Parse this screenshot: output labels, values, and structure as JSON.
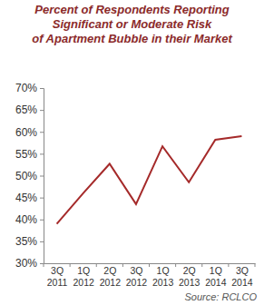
{
  "chart_data": {
    "type": "line",
    "title": "Percent of Respondents Reporting\nSignificant or Moderate Risk\nof Apartment Bubble in their Market",
    "source": "Source: RCLCO",
    "categories": [
      "3Q 2011",
      "1Q 2012",
      "2Q 2012",
      "3Q 2012",
      "1Q 2013",
      "2Q 2013",
      "1Q 2014",
      "3Q 2014"
    ],
    "values": [
      39,
      46,
      52.7,
      43.5,
      56.7,
      48.5,
      58.2,
      59
    ],
    "color": "#a52a2a",
    "ylim": [
      30,
      70
    ],
    "yticks": [
      {
        "value": 30,
        "label": "30%"
      },
      {
        "value": 35,
        "label": "35%"
      },
      {
        "value": 40,
        "label": "40%"
      },
      {
        "value": 45,
        "label": "45%"
      },
      {
        "value": 50,
        "label": "50%"
      },
      {
        "value": 55,
        "label": "55%"
      },
      {
        "value": 60,
        "label": "60%"
      },
      {
        "value": 65,
        "label": "65%"
      },
      {
        "value": 70,
        "label": "70%"
      }
    ],
    "grid": false
  }
}
